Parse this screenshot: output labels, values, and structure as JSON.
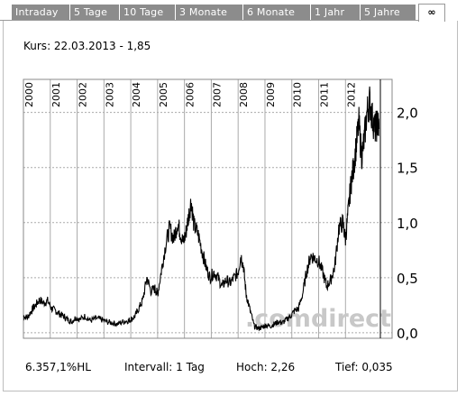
{
  "tabs": [
    {
      "label": "Intraday"
    },
    {
      "label": "5 Tage"
    },
    {
      "label": "10 Tage"
    },
    {
      "label": "3 Monate"
    },
    {
      "label": "6 Monate"
    },
    {
      "label": "1 Jahr"
    },
    {
      "label": "5 Jahre"
    }
  ],
  "special_tab": {
    "label": "∞",
    "icon": "infinity-icon"
  },
  "kurs_label": "Kurs: 22.03.2013 - 1,85",
  "watermark": ".comdirect",
  "footer": {
    "hl": "6.357,1%HL",
    "intervall": "Intervall: 1 Tag",
    "hoch": "Hoch:  2,26",
    "tief": "Tief:  0,035"
  },
  "colors": {
    "line": "#000000",
    "grid": "#aaaaaa",
    "tab": "#8c8c8c",
    "watermark": "#c8c8c8"
  },
  "chart_data": {
    "type": "line",
    "title": "",
    "xlabel": "",
    "ylabel": "",
    "year_labels": [
      "2000",
      "2001",
      "2002",
      "2003",
      "2004",
      "2005",
      "2006",
      "2007",
      "2008",
      "2009",
      "2010",
      "2011",
      "2012"
    ],
    "xlim": [
      2000.0,
      2013.3
    ],
    "ylim": [
      -0.05,
      2.3
    ],
    "y_ticks": [
      {
        "value": 0.0,
        "label": "0,0"
      },
      {
        "value": 0.5,
        "label": "0,5"
      },
      {
        "value": 1.0,
        "label": "1,0"
      },
      {
        "value": 1.5,
        "label": "1,5"
      },
      {
        "value": 2.0,
        "label": "2,0"
      }
    ],
    "grid": true,
    "series": [
      {
        "x": [
          2000.0,
          2000.15,
          2000.3,
          2000.45,
          2000.6,
          2000.75,
          2000.9,
          2001.05,
          2001.2,
          2001.35,
          2001.5,
          2001.65,
          2001.8,
          2001.95,
          2002.1,
          2002.3,
          2002.5,
          2002.7,
          2002.9,
          2003.1,
          2003.3,
          2003.5,
          2003.7,
          2003.9,
          2004.0,
          2004.15,
          2004.3,
          2004.45,
          2004.6,
          2004.75,
          2004.9,
          2005.0,
          2005.15,
          2005.3,
          2005.45,
          2005.6,
          2005.75,
          2005.85,
          2005.95,
          2006.05,
          2006.15,
          2006.25,
          2006.35,
          2006.5,
          2006.65,
          2006.8,
          2006.95,
          2007.1,
          2007.25,
          2007.4,
          2007.55,
          2007.7,
          2007.85,
          2008.0,
          2008.1,
          2008.2,
          2008.3,
          2008.45,
          2008.6,
          2008.75,
          2008.9,
          2009.05,
          2009.2,
          2009.35,
          2009.5,
          2009.65,
          2009.8,
          2009.95,
          2010.1,
          2010.25,
          2010.4,
          2010.55,
          2010.7,
          2010.85,
          2011.0,
          2011.15,
          2011.3,
          2011.45,
          2011.6,
          2011.75,
          2011.9,
          2012.0,
          2012.1,
          2012.2,
          2012.3,
          2012.4,
          2012.5,
          2012.6,
          2012.7,
          2012.8,
          2012.9,
          2013.0,
          2013.1,
          2013.2,
          2013.25
        ],
        "y": [
          0.15,
          0.14,
          0.2,
          0.25,
          0.3,
          0.27,
          0.29,
          0.22,
          0.2,
          0.17,
          0.15,
          0.12,
          0.1,
          0.14,
          0.12,
          0.15,
          0.11,
          0.13,
          0.12,
          0.1,
          0.09,
          0.08,
          0.1,
          0.11,
          0.12,
          0.15,
          0.22,
          0.3,
          0.5,
          0.38,
          0.4,
          0.35,
          0.58,
          0.8,
          0.95,
          0.85,
          1.0,
          0.9,
          0.82,
          0.9,
          1.05,
          1.2,
          0.98,
          0.9,
          0.75,
          0.6,
          0.5,
          0.55,
          0.5,
          0.42,
          0.48,
          0.45,
          0.5,
          0.55,
          0.7,
          0.6,
          0.35,
          0.2,
          0.06,
          0.04,
          0.05,
          0.07,
          0.06,
          0.08,
          0.1,
          0.09,
          0.12,
          0.15,
          0.2,
          0.22,
          0.35,
          0.55,
          0.7,
          0.68,
          0.65,
          0.55,
          0.42,
          0.48,
          0.6,
          0.95,
          1.0,
          0.85,
          1.1,
          1.35,
          1.5,
          1.7,
          1.9,
          1.6,
          1.75,
          2.0,
          2.1,
          1.95,
          1.85,
          1.9,
          1.85
        ]
      }
    ]
  }
}
